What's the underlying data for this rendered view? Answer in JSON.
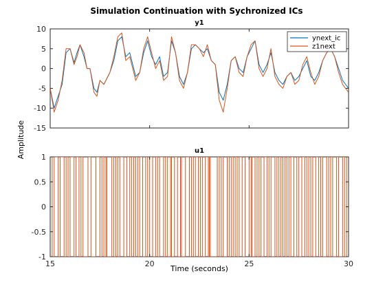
{
  "figure": {
    "title": "Simulation Continuation with Sychronized ICs",
    "xlabel": "Time (seconds)",
    "ylabel": "Amplitude"
  },
  "chart_data": [
    {
      "type": "line",
      "title": "y1",
      "xlim": [
        15,
        30
      ],
      "ylim": [
        -15,
        10
      ],
      "xticks": [
        15,
        20,
        25,
        30
      ],
      "yticks": [
        -15,
        -10,
        -5,
        0,
        5,
        10
      ],
      "xtick_labels_visible": false,
      "legend_position": "top-right",
      "grid": false,
      "series": [
        {
          "name": "ynext_ic",
          "color": "#0072BD",
          "x": [
            15.0,
            15.2,
            15.4,
            15.6,
            15.8,
            16.0,
            16.2,
            16.35,
            16.5,
            16.7,
            16.85,
            17.0,
            17.2,
            17.35,
            17.5,
            17.7,
            17.9,
            18.0,
            18.2,
            18.4,
            18.6,
            18.8,
            19.0,
            19.15,
            19.3,
            19.5,
            19.7,
            19.9,
            20.1,
            20.3,
            20.5,
            20.7,
            20.9,
            21.1,
            21.3,
            21.5,
            21.7,
            21.9,
            22.1,
            22.3,
            22.5,
            22.7,
            22.9,
            23.1,
            23.3,
            23.5,
            23.7,
            23.9,
            24.1,
            24.3,
            24.5,
            24.7,
            24.9,
            25.1,
            25.3,
            25.5,
            25.7,
            25.9,
            26.1,
            26.3,
            26.5,
            26.7,
            26.9,
            27.1,
            27.3,
            27.5,
            27.7,
            27.9,
            28.1,
            28.3,
            28.5,
            28.7,
            28.9,
            29.1,
            29.3,
            29.5,
            29.7,
            30.0
          ],
          "y": [
            -5,
            -10,
            -7,
            -4,
            4,
            5,
            1.5,
            4,
            6,
            3,
            0,
            0,
            -5,
            -6,
            -3,
            -4,
            -2,
            -1,
            2,
            7,
            8,
            3,
            4,
            1,
            -2,
            -1,
            4,
            7,
            3,
            1,
            3,
            -2,
            -1,
            7,
            4,
            -2,
            -4,
            -1,
            5,
            6,
            5,
            4,
            5,
            2,
            1,
            -6,
            -8,
            -4,
            2,
            3,
            0,
            -1,
            3,
            5,
            7,
            1,
            -1,
            1,
            4,
            -1,
            -3,
            -4,
            -2,
            -1,
            -3,
            -2,
            0,
            2,
            -2,
            -3,
            -1,
            2,
            4,
            5,
            3,
            0,
            -3,
            -5
          ]
        },
        {
          "name": "z1next",
          "color": "#D95319",
          "x": [
            15.0,
            15.2,
            15.4,
            15.6,
            15.8,
            16.0,
            16.2,
            16.35,
            16.5,
            16.7,
            16.85,
            17.0,
            17.2,
            17.35,
            17.5,
            17.7,
            17.9,
            18.0,
            18.2,
            18.4,
            18.6,
            18.8,
            19.0,
            19.15,
            19.3,
            19.5,
            19.7,
            19.9,
            20.1,
            20.3,
            20.5,
            20.7,
            20.9,
            21.1,
            21.3,
            21.5,
            21.7,
            21.9,
            22.1,
            22.3,
            22.5,
            22.7,
            22.9,
            23.1,
            23.3,
            23.5,
            23.7,
            23.9,
            24.1,
            24.3,
            24.5,
            24.7,
            24.9,
            25.1,
            25.3,
            25.5,
            25.7,
            25.9,
            26.1,
            26.3,
            26.5,
            26.7,
            26.9,
            27.1,
            27.3,
            27.5,
            27.7,
            27.9,
            28.1,
            28.3,
            28.5,
            28.7,
            28.9,
            29.1,
            29.3,
            29.5,
            29.7,
            30.0
          ],
          "y": [
            -5,
            -11,
            -8,
            -3,
            5,
            5,
            1,
            3,
            6,
            4,
            0,
            0,
            -6,
            -7,
            -3,
            -4,
            -2,
            -1,
            3,
            8,
            9,
            2,
            3,
            0,
            -3,
            -1,
            5,
            8,
            4,
            0,
            2,
            -3,
            -2,
            8,
            4,
            -3,
            -5,
            -1,
            6,
            6,
            5,
            3,
            6,
            2,
            1,
            -8,
            -11,
            -5,
            2,
            3,
            -1,
            -2,
            3,
            6,
            7,
            0,
            -2,
            0,
            5,
            -2,
            -4,
            -5,
            -2,
            -1,
            -4,
            -3,
            1,
            3,
            -1,
            -4,
            -2,
            2,
            4,
            5,
            3,
            -1,
            -4,
            -6
          ]
        }
      ]
    },
    {
      "type": "line",
      "title": "u1",
      "xlim": [
        15,
        30
      ],
      "ylim": [
        -1,
        1
      ],
      "xticks": [
        15,
        20,
        25,
        30
      ],
      "xtick_labels": [
        "15",
        "20",
        "25",
        "30"
      ],
      "yticks": [
        -1,
        -0.5,
        0,
        0.5,
        1
      ],
      "ytick_labels": [
        "-1",
        "-0.5",
        "0",
        "0.5",
        "1"
      ],
      "grid": false,
      "series": [
        {
          "color": "#D95319",
          "step_times": [
            15.1,
            15.2,
            15.4,
            15.5,
            15.7,
            15.8,
            15.9,
            16.0,
            16.2,
            16.3,
            16.45,
            16.55,
            16.65,
            16.9,
            17.05,
            17.3,
            17.5,
            17.6,
            17.7,
            17.8,
            17.85,
            18.1,
            18.2,
            18.3,
            18.4,
            18.5,
            18.7,
            18.85,
            19.0,
            19.1,
            19.2,
            19.3,
            19.4,
            19.5,
            19.65,
            19.8,
            19.9,
            20.0,
            20.15,
            20.3,
            20.4,
            20.5,
            20.7,
            20.8,
            20.9,
            21.05,
            21.1,
            21.25,
            21.4,
            21.55,
            21.6,
            21.8,
            22.0,
            22.1,
            22.2,
            22.3,
            22.45,
            22.55,
            22.65,
            22.8,
            22.95,
            23.0,
            23.05,
            23.4,
            23.5,
            23.6,
            23.7,
            23.9,
            24.0,
            24.1,
            24.2,
            24.3,
            24.4,
            24.5,
            24.65,
            24.8,
            25.0,
            25.1,
            25.15,
            25.3,
            25.4,
            25.5,
            25.6,
            25.75,
            25.9,
            26.0,
            26.1,
            26.3,
            26.4,
            26.5,
            26.6,
            26.7,
            26.8,
            26.9,
            27.0,
            27.1,
            27.25,
            27.4,
            27.5,
            27.65,
            27.8,
            27.9,
            28.0,
            28.1,
            28.2,
            28.35,
            28.5,
            28.6,
            28.7,
            28.9,
            29.0,
            29.1,
            29.2,
            29.4,
            29.5,
            29.7,
            29.8,
            29.9
          ]
        }
      ]
    }
  ]
}
